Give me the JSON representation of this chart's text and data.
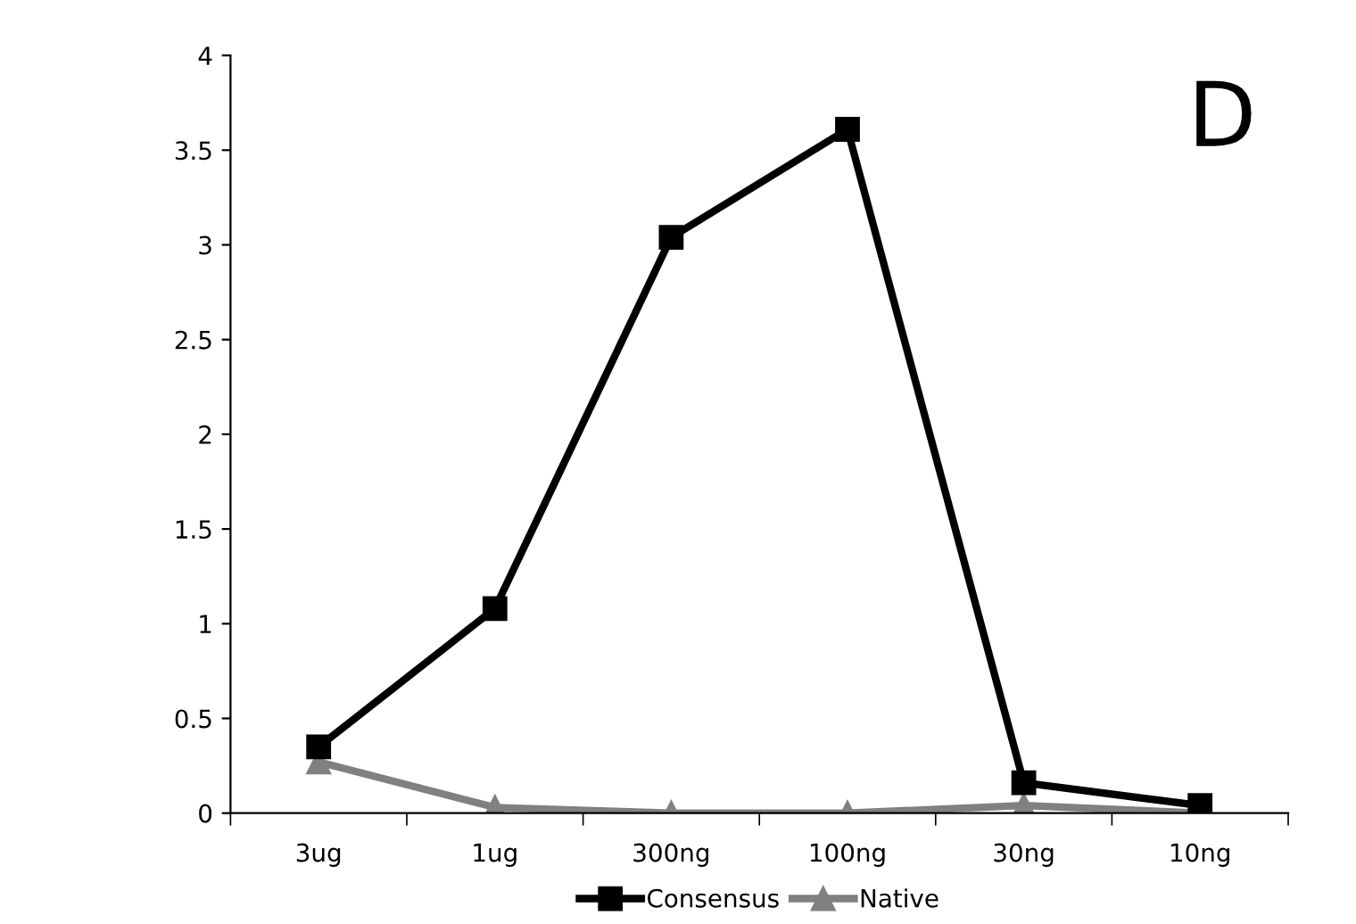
{
  "chart_data": {
    "type": "line",
    "categories": [
      "3ug",
      "1ug",
      "300ng",
      "100ng",
      "30ng",
      "10ng"
    ],
    "series": [
      {
        "name": "Consensus",
        "color": "#000000",
        "marker": "square",
        "values": [
          0.35,
          1.08,
          3.04,
          3.61,
          0.16,
          0.04
        ]
      },
      {
        "name": "Native",
        "color": "#808080",
        "marker": "triangle",
        "values": [
          0.27,
          0.03,
          0,
          0,
          0.04,
          0
        ]
      }
    ],
    "ylim": [
      0,
      4
    ],
    "yticks": [
      0,
      0.5,
      1,
      1.5,
      2,
      2.5,
      3,
      3.5,
      4
    ],
    "annotations": [
      "D"
    ],
    "grid": false,
    "legend": "bottom",
    "line_style": "solid"
  }
}
